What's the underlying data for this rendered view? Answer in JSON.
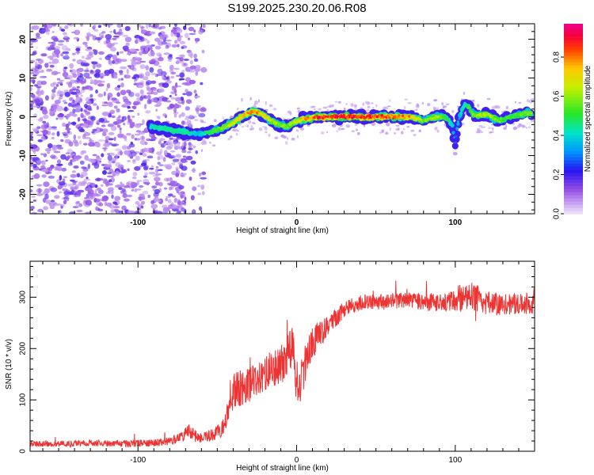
{
  "page": {
    "title": "S199.2025.230.20.06.R08"
  },
  "chart_data": [
    {
      "type": "heatmap",
      "title": "S199.2025.230.20.06.R08",
      "xlabel": "Height of straight line (km)",
      "ylabel": "Frequency (Hz)",
      "xlim": [
        -168,
        150
      ],
      "ylim": [
        -25,
        24
      ],
      "xticks": [
        -100,
        0,
        100
      ],
      "yticks": [
        20,
        10,
        0,
        -10,
        -20
      ],
      "colorbar": {
        "label": "Normalized spectral amplitude",
        "range": [
          0.0,
          0.97
        ],
        "ticks": [
          0.0,
          0.2,
          0.4,
          0.6,
          0.8
        ],
        "tick_labels": [
          "0.0",
          "0.2",
          "0.4",
          "0.6",
          "0.8"
        ]
      },
      "ridge": {
        "x": [
          -92,
          -85,
          -78,
          -70,
          -62,
          -55,
          -48,
          -40,
          -33,
          -27,
          -23,
          -18,
          -12,
          -6,
          -2,
          5,
          15,
          30,
          45,
          60,
          72,
          80,
          88,
          93,
          98,
          100,
          102,
          106,
          112,
          120,
          128,
          135,
          140,
          148
        ],
        "y": [
          -2.5,
          -3.0,
          -3.5,
          -4.0,
          -4.5,
          -4.0,
          -3.0,
          -1.5,
          0.5,
          1.5,
          1.0,
          -0.5,
          -2.0,
          -2.5,
          -1.5,
          -0.5,
          0.0,
          0.0,
          0.0,
          0.0,
          0.0,
          -1.0,
          0.0,
          0.0,
          -2.0,
          -7.0,
          -1.0,
          3.5,
          0.5,
          0.5,
          -1.0,
          0.0,
          0.5,
          1.0
        ],
        "amplitude": [
          0.45,
          0.5,
          0.5,
          0.5,
          0.4,
          0.55,
          0.6,
          0.75,
          0.85,
          0.9,
          0.8,
          0.75,
          0.65,
          0.6,
          0.7,
          0.85,
          0.95,
          0.95,
          0.95,
          0.9,
          0.85,
          0.6,
          0.7,
          0.6,
          0.45,
          0.3,
          0.4,
          0.5,
          0.65,
          0.7,
          0.6,
          0.55,
          0.6,
          0.65
        ]
      },
      "noise_region": {
        "x_range": [
          -168,
          -58
        ],
        "amplitude_range": [
          0.05,
          0.2
        ]
      }
    },
    {
      "type": "line",
      "xlabel": "Height of straight line (km)",
      "ylabel": "SNR (10 * v/v)",
      "xlim": [
        -168,
        150
      ],
      "ylim": [
        0,
        370
      ],
      "xticks": [
        -100,
        0,
        100
      ],
      "yticks": [
        0,
        100,
        200,
        300
      ],
      "series": [
        {
          "name": "SNR",
          "color": "#ee3333",
          "x": [
            -168,
            -150,
            -130,
            -110,
            -90,
            -80,
            -72,
            -68,
            -62,
            -55,
            -50,
            -45,
            -42,
            -38,
            -30,
            -20,
            -10,
            -5,
            -2,
            0,
            3,
            8,
            12,
            20,
            28,
            35,
            45,
            55,
            70,
            85,
            100,
            110,
            120,
            130,
            140,
            150
          ],
          "y": [
            14,
            14,
            16,
            15,
            16,
            20,
            28,
            40,
            25,
            30,
            35,
            55,
            110,
            120,
            130,
            150,
            170,
            190,
            220,
            110,
            140,
            200,
            215,
            245,
            270,
            285,
            292,
            290,
            295,
            290,
            292,
            300,
            290,
            285,
            290,
            285
          ],
          "noise_amplitude": [
            6,
            6,
            6,
            7,
            7,
            8,
            10,
            15,
            10,
            12,
            15,
            20,
            35,
            35,
            35,
            35,
            40,
            40,
            45,
            40,
            40,
            35,
            30,
            20,
            18,
            15,
            15,
            15,
            15,
            18,
            20,
            30,
            25,
            22,
            22,
            22
          ]
        }
      ]
    }
  ]
}
